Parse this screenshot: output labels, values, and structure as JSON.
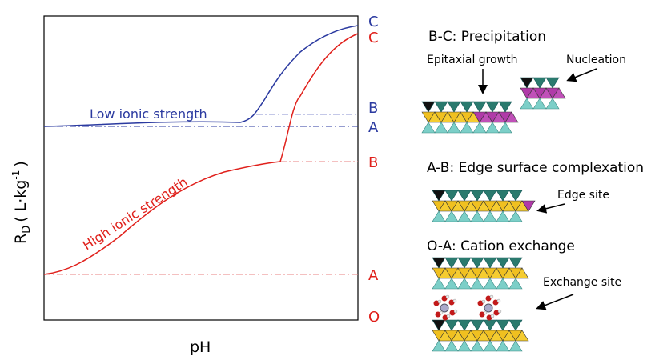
{
  "plot": {
    "y_label": {
      "main": "R",
      "sub": "D",
      "unit": "( L·kg",
      "sup": "-1",
      "close": ")"
    },
    "x_label": "pH",
    "low_curve_label": "Low ionic strength",
    "high_curve_label": "High ionic strength",
    "low_levels": [
      "C",
      "B",
      "A"
    ],
    "high_levels": [
      "C",
      "B",
      "A",
      "O"
    ]
  },
  "panels": [
    {
      "title": "B-C: Precipitation",
      "notes": [
        "Epitaxial growth",
        "Nucleation"
      ]
    },
    {
      "title": "A-B: Edge surface complexation",
      "notes": [
        "Edge site"
      ]
    },
    {
      "title": "O-A: Cation exchange",
      "notes": [
        "Exchange site"
      ]
    }
  ]
}
